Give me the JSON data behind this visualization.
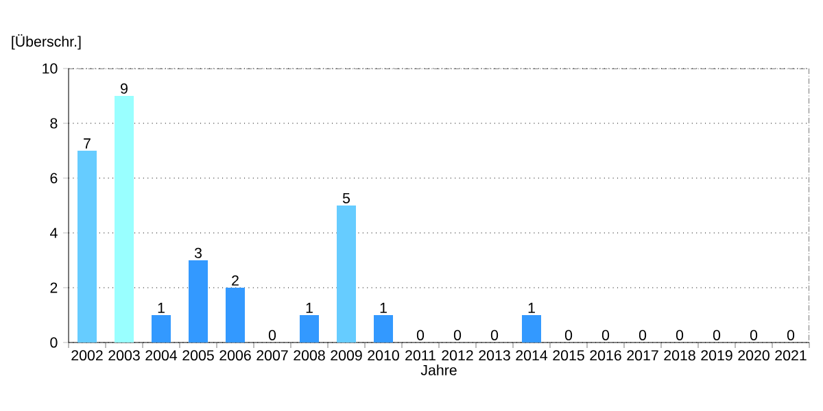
{
  "chart_data": {
    "type": "bar",
    "xlabel": "Jahre",
    "ylabel": "[Überschr.]",
    "categories": [
      "2002",
      "2003",
      "2004",
      "2005",
      "2006",
      "2007",
      "2008",
      "2009",
      "2010",
      "2011",
      "2012",
      "2013",
      "2014",
      "2015",
      "2016",
      "2017",
      "2018",
      "2019",
      "2020",
      "2021"
    ],
    "values": [
      7,
      9,
      1,
      3,
      2,
      0,
      1,
      5,
      1,
      0,
      0,
      0,
      1,
      0,
      0,
      0,
      0,
      0,
      0,
      0
    ],
    "colors": [
      "#66ccff",
      "#99ffff",
      "#3399ff",
      "#3399ff",
      "#3399ff",
      "#3399ff",
      "#3399ff",
      "#66ccff",
      "#3399ff",
      "#3399ff",
      "#3399ff",
      "#3399ff",
      "#3399ff",
      "#3399ff",
      "#3399ff",
      "#3399ff",
      "#3399ff",
      "#3399ff",
      "#3399ff",
      "#3399ff"
    ],
    "ylim": [
      0,
      10
    ],
    "yticks": [
      0,
      2,
      4,
      6,
      8,
      10
    ],
    "grid": "y",
    "data_labels": true
  }
}
